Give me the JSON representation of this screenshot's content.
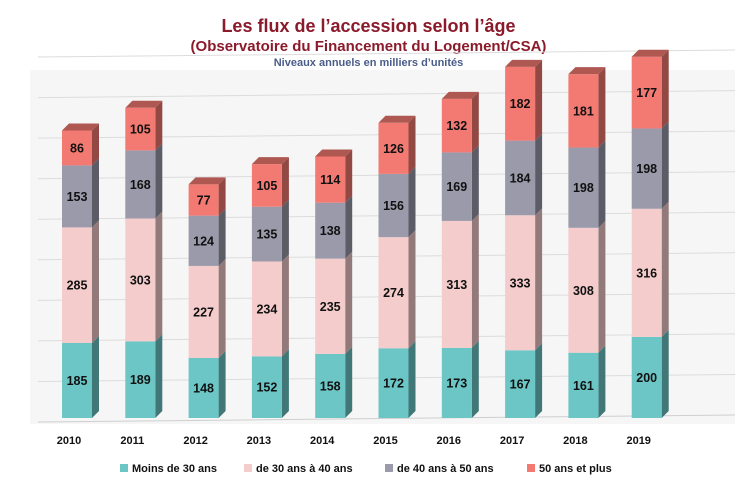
{
  "chart_data": {
    "type": "bar",
    "stacked": true,
    "title": "Les flux de l’accession selon l’âge",
    "subtitle": "(Observatoire du Financement du Logement/CSA)",
    "unit_note": "Niveaux annuels en milliers d’unités",
    "categories": [
      "2010",
      "2011",
      "2012",
      "2013",
      "2014",
      "2015",
      "2016",
      "2017",
      "2018",
      "2019"
    ],
    "series": [
      {
        "name": "Moins de 30 ans",
        "color": "#6cc6c6",
        "values": [
          185,
          189,
          148,
          152,
          158,
          172,
          173,
          167,
          161,
          200
        ]
      },
      {
        "name": "de 30 ans à 40 ans",
        "color": "#f5cccc",
        "values": [
          285,
          303,
          227,
          234,
          235,
          274,
          313,
          333,
          308,
          316
        ]
      },
      {
        "name": "de 40 ans à 50 ans",
        "color": "#9a9aab",
        "values": [
          153,
          168,
          124,
          135,
          138,
          156,
          169,
          184,
          198,
          198
        ]
      },
      {
        "name": "50 ans et plus",
        "color": "#f37a72",
        "values": [
          86,
          105,
          77,
          105,
          114,
          126,
          132,
          182,
          181,
          177
        ]
      }
    ],
    "legend_position": "bottom",
    "grid": true
  }
}
